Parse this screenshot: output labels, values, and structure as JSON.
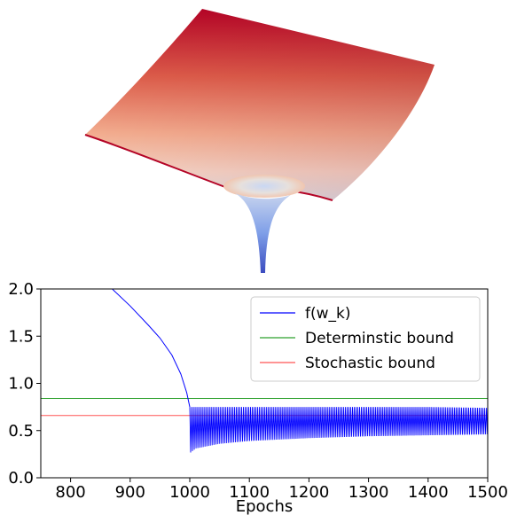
{
  "surface": {
    "description_colors": {
      "high": "#b40426",
      "mid": "#f5c4ac",
      "low": "#3b4cc0"
    }
  },
  "chart_data": {
    "type": "line",
    "title": "",
    "xlabel": "Epochs",
    "ylabel": "",
    "xlim": [
      750,
      1500
    ],
    "ylim": [
      0.0,
      2.0
    ],
    "xticks": [
      800,
      900,
      1000,
      1100,
      1200,
      1300,
      1400,
      1500
    ],
    "yticks": [
      0.0,
      0.5,
      1.0,
      1.5,
      2.0
    ],
    "xtick_labels": [
      "800",
      "900",
      "1000",
      "1100",
      "1200",
      "1300",
      "1400",
      "1500"
    ],
    "ytick_labels": [
      "0.0",
      "0.5",
      "1.0",
      "1.5",
      "2.0"
    ],
    "grid": false,
    "legend_position": "top-right",
    "series": [
      {
        "name": "f(w_k)",
        "color": "#0000ff",
        "kind": "decay_then_oscillation",
        "x": [
          870,
          900,
          930,
          950,
          970,
          985,
          995,
          1000
        ],
        "y": [
          2.0,
          1.82,
          1.62,
          1.48,
          1.3,
          1.1,
          0.9,
          0.75
        ],
        "oscillation_start": 1000,
        "oscillation_upper": [
          [
            1000,
            0.75
          ],
          [
            1100,
            0.75
          ],
          [
            1200,
            0.75
          ],
          [
            1300,
            0.75
          ],
          [
            1400,
            0.75
          ],
          [
            1500,
            0.74
          ]
        ],
        "oscillation_lower": [
          [
            1000,
            0.26
          ],
          [
            1010,
            0.31
          ],
          [
            1050,
            0.36
          ],
          [
            1100,
            0.39
          ],
          [
            1200,
            0.42
          ],
          [
            1300,
            0.44
          ],
          [
            1400,
            0.45
          ],
          [
            1500,
            0.46
          ]
        ]
      },
      {
        "name": "Determinstic bound",
        "color": "#2ca02c",
        "kind": "hline",
        "y": 0.84
      },
      {
        "name": "Stochastic bound",
        "color": "#ff5555",
        "kind": "hline",
        "y": 0.66
      }
    ]
  }
}
